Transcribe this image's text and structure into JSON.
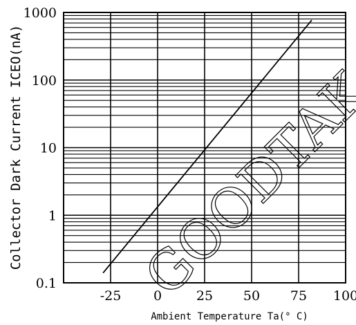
{
  "chart_data": {
    "type": "line",
    "xlabel": "Ambient Temperature Ta(° C)",
    "ylabel": "Collector Dark Current ICEO(nA)",
    "y_scale": "log",
    "xlim": [
      -50,
      100
    ],
    "ylim": [
      0.1,
      1000
    ],
    "x_ticks": [
      -25,
      0,
      25,
      50,
      75,
      100
    ],
    "x_tick_labels": [
      "-25",
      "0",
      "25",
      "50",
      "75",
      "100"
    ],
    "y_ticks": [
      0.1,
      1,
      10,
      100,
      1000
    ],
    "y_tick_labels": [
      "0.1",
      "1",
      "10",
      "100",
      "1000"
    ],
    "grid": true,
    "series": [
      {
        "x": [
          -29,
          82
        ],
        "y": [
          0.14,
          770
        ]
      }
    ]
  },
  "watermark": "GOODTAK"
}
